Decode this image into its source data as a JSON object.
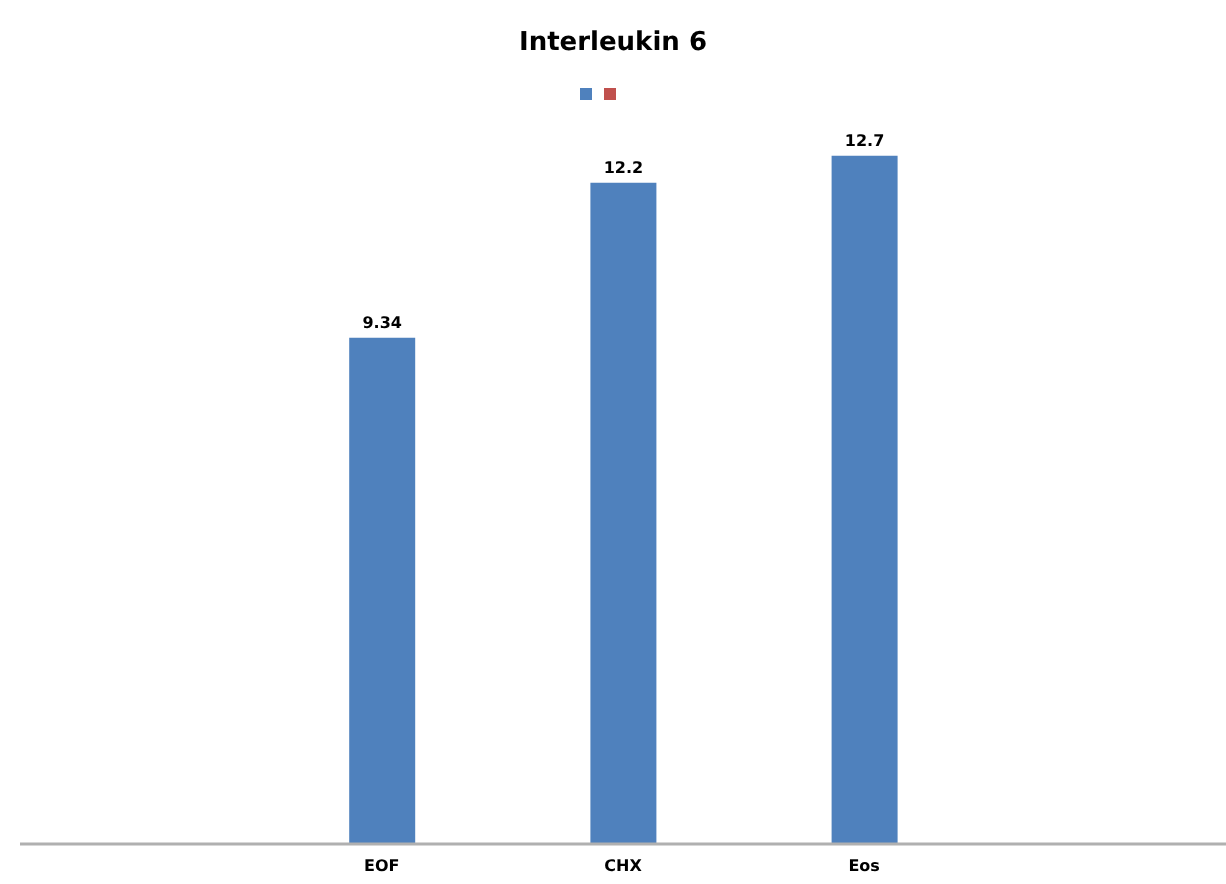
{
  "chart_data": {
    "type": "bar",
    "title": "Interleukin 6",
    "categories": [
      null,
      "EOF",
      "CHX",
      "Eos",
      null
    ],
    "series": [
      {
        "color": "#4f81bd",
        "values": [
          null,
          9.34,
          12.2,
          12.7,
          null
        ]
      }
    ],
    "data_labels": true
  }
}
